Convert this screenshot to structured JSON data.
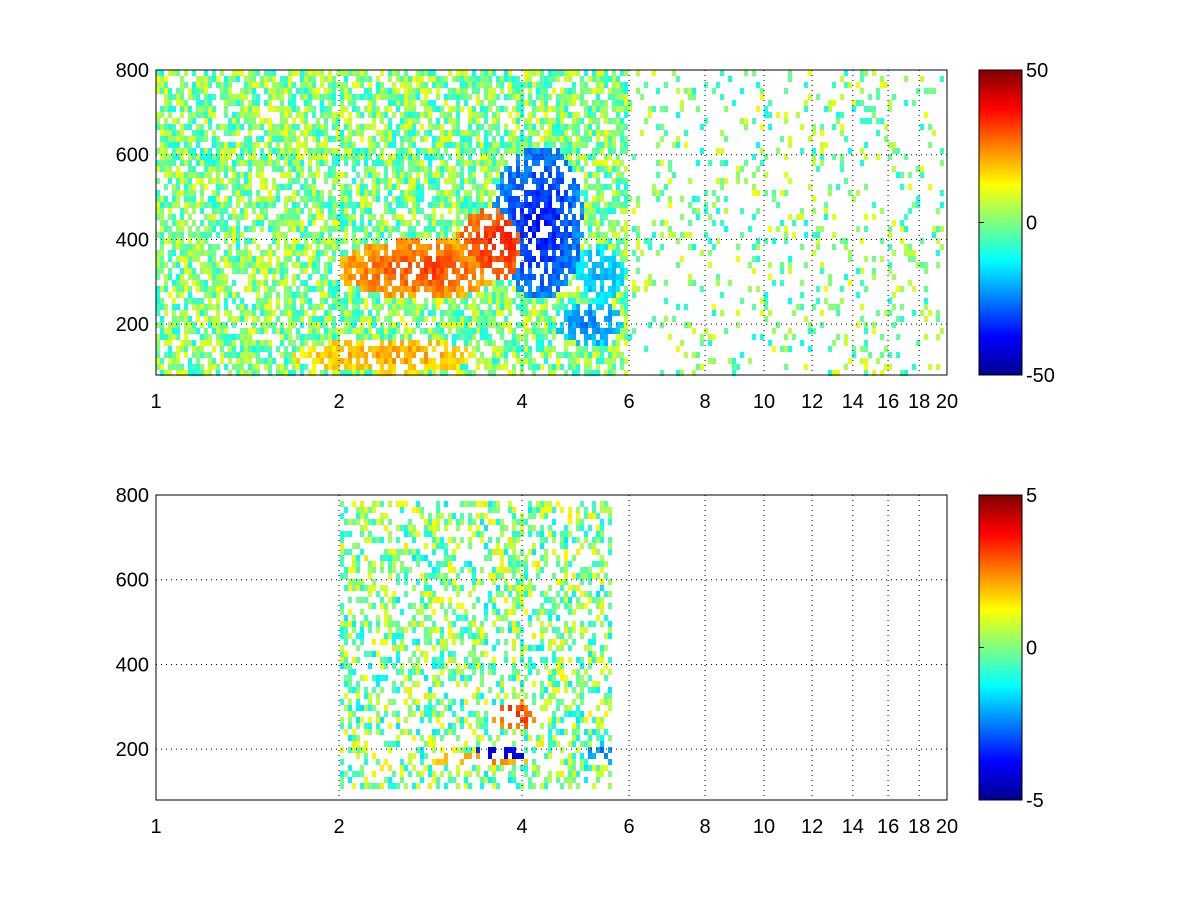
{
  "colormap": "jet",
  "colors": {
    "background": "#ffffff",
    "axes": "#000000",
    "grid": "#000000",
    "jet_stops": [
      "#00008f",
      "#0000ff",
      "#00ffff",
      "#7fff7f",
      "#ffff00",
      "#ff0000",
      "#800000"
    ]
  },
  "chart_data": [
    {
      "type": "heatmap",
      "title": "",
      "xlabel": "",
      "ylabel": "",
      "xlim": [
        1,
        20
      ],
      "ylim": [
        80,
        800
      ],
      "x_scale": "log",
      "grid": true,
      "grid_style": "dotted",
      "x_ticks": [
        1,
        2,
        4,
        6,
        8,
        10,
        12,
        14,
        16,
        18,
        20
      ],
      "x_tick_labels": [
        "1",
        "2",
        "4",
        "6",
        "8",
        "10",
        "12",
        "14",
        "16",
        "18",
        "20"
      ],
      "y_ticks": [
        200,
        400,
        600,
        800
      ],
      "y_tick_labels": [
        "200",
        "400",
        "600",
        "800"
      ],
      "clim": [
        -50,
        50
      ],
      "colorbar_ticks": [
        50,
        0,
        -50
      ],
      "colorbar_labels": [
        "50",
        "0",
        "-50"
      ],
      "features": [
        {
          "x": 2.8,
          "y": 330,
          "value": 30,
          "spread_x": 0.5,
          "spread_y": 45
        },
        {
          "x": 3.7,
          "y": 390,
          "value": 35,
          "spread_x": 0.35,
          "spread_y": 55
        },
        {
          "x": 2.5,
          "y": 125,
          "value": 22,
          "spread_x": 0.5,
          "spread_y": 25
        },
        {
          "x": 4.3,
          "y": 440,
          "value": -35,
          "spread_x": 0.45,
          "spread_y": 110
        },
        {
          "x": 5.2,
          "y": 200,
          "value": -25,
          "spread_x": 0.4,
          "spread_y": 30
        },
        {
          "x": 5.4,
          "y": 320,
          "value": -20,
          "spread_x": 0.3,
          "spread_y": 40
        }
      ],
      "scatter_x_max": 20,
      "scatter_value_range": [
        -12,
        12
      ]
    },
    {
      "type": "heatmap",
      "title": "",
      "xlabel": "",
      "ylabel": "",
      "xlim": [
        1,
        20
      ],
      "ylim": [
        80,
        800
      ],
      "x_scale": "log",
      "grid": true,
      "grid_style": "dotted",
      "x_ticks": [
        1,
        2,
        4,
        6,
        8,
        10,
        12,
        14,
        16,
        18,
        20
      ],
      "x_tick_labels": [
        "1",
        "2",
        "4",
        "6",
        "8",
        "10",
        "12",
        "14",
        "16",
        "18",
        "20"
      ],
      "y_ticks": [
        200,
        400,
        600,
        800
      ],
      "y_tick_labels": [
        "200",
        "400",
        "600",
        "800"
      ],
      "clim": [
        -5,
        5
      ],
      "colorbar_ticks": [
        5,
        0,
        -5
      ],
      "colorbar_labels": [
        "5",
        "0",
        "-5"
      ],
      "features": [
        {
          "x": 3.7,
          "y": 185,
          "value": -4.5,
          "spread_x": 0.25,
          "spread_y": 15
        },
        {
          "x": 3.9,
          "y": 280,
          "value": 3.5,
          "spread_x": 0.2,
          "spread_y": 20
        },
        {
          "x": 3.5,
          "y": 175,
          "value": 2.5,
          "spread_x": 0.4,
          "spread_y": 10
        },
        {
          "x": 5.5,
          "y": 190,
          "value": -2.5,
          "spread_x": 0.3,
          "spread_y": 15
        }
      ],
      "data_region": {
        "x": [
          2.0,
          5.6
        ],
        "y": [
          100,
          780
        ]
      },
      "value_range": [
        -1.5,
        1.5
      ]
    }
  ]
}
